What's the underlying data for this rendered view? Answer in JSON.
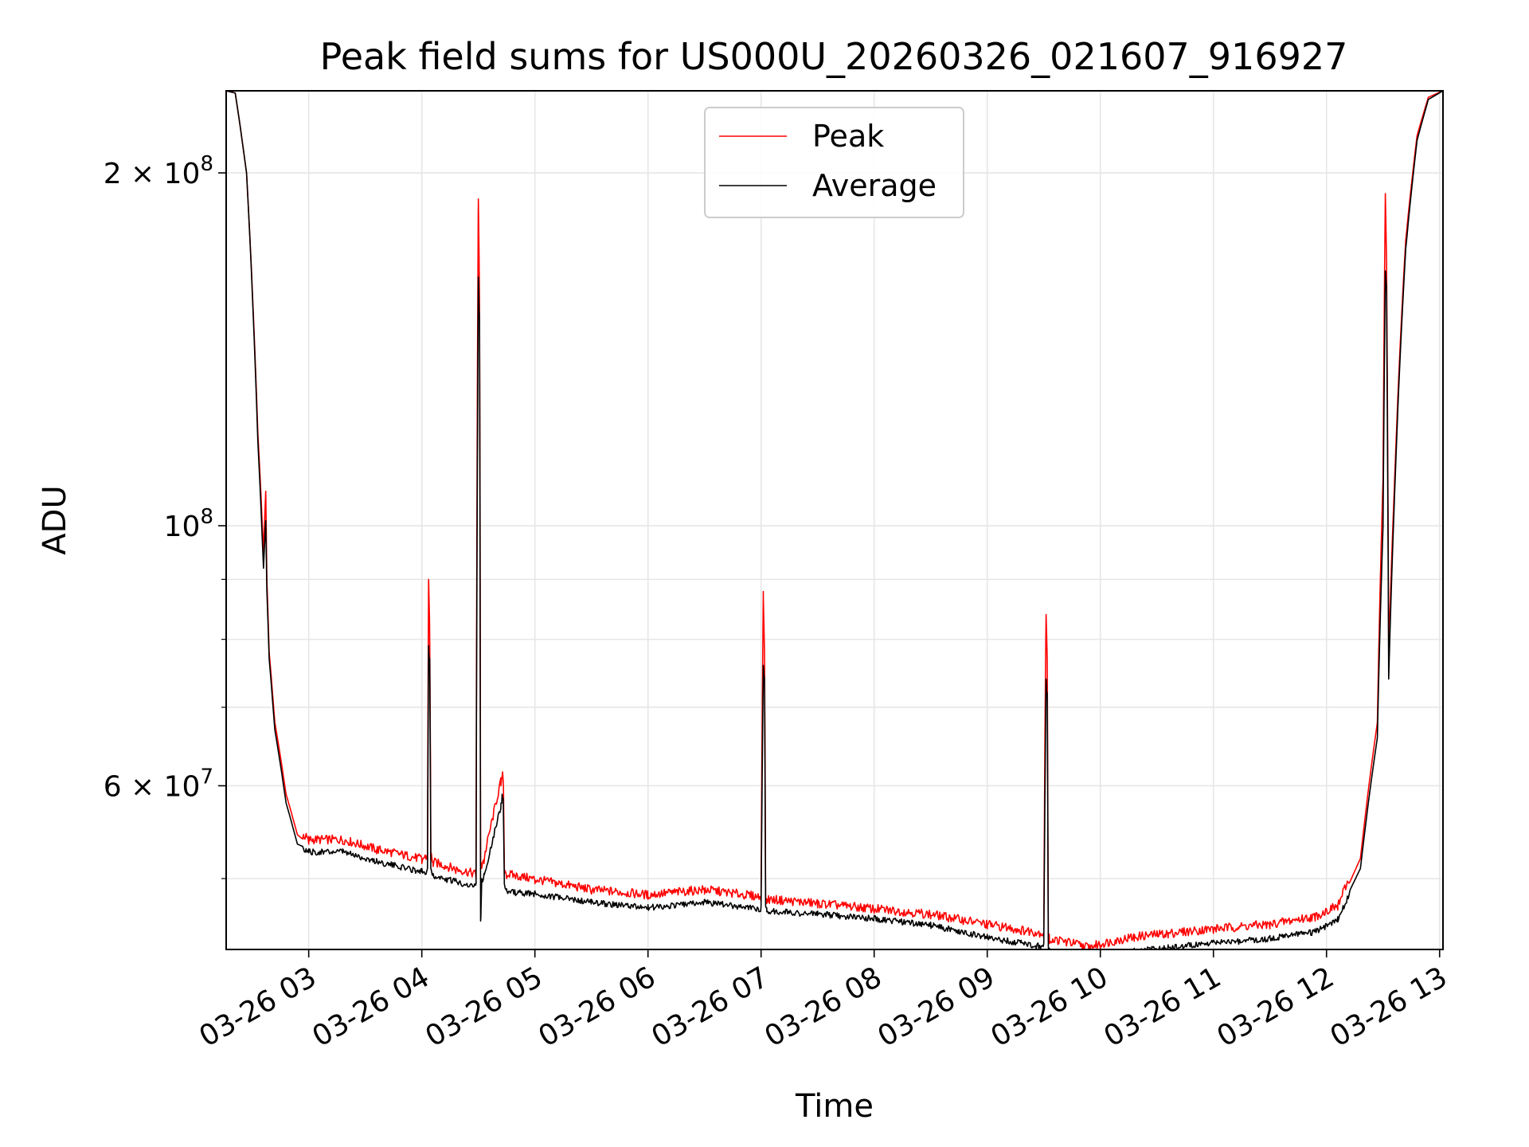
{
  "chart_data": {
    "type": "line",
    "title": "Peak field sums for US000U_20260326_021607_916927",
    "xlabel": "Time",
    "ylabel": "ADU",
    "x_unit": "hours on 2026-03-26",
    "y_scale": "log",
    "xlim": [
      2.27,
      13.03
    ],
    "ylim": [
      43500000,
      235000000
    ],
    "grid": true,
    "legend_location": "upper center",
    "x_ticks": [
      {
        "value": 3,
        "label": "03-26 03"
      },
      {
        "value": 4,
        "label": "03-26 04"
      },
      {
        "value": 5,
        "label": "03-26 05"
      },
      {
        "value": 6,
        "label": "03-26 06"
      },
      {
        "value": 7,
        "label": "03-26 07"
      },
      {
        "value": 8,
        "label": "03-26 08"
      },
      {
        "value": 9,
        "label": "03-26 09"
      },
      {
        "value": 10,
        "label": "03-26 10"
      },
      {
        "value": 11,
        "label": "03-26 11"
      },
      {
        "value": 12,
        "label": "03-26 12"
      },
      {
        "value": 13,
        "label": "03-26 13"
      }
    ],
    "y_ticks": [
      {
        "value": 60000000,
        "base": "6 × 10",
        "exp": "7"
      },
      {
        "value": 100000000,
        "base": "10",
        "exp": "8"
      },
      {
        "value": 200000000,
        "base": "2 × 10",
        "exp": "8"
      }
    ],
    "y_minor_ticks": [
      50000000,
      70000000,
      80000000,
      90000000
    ],
    "series": [
      {
        "name": "Peak",
        "color": "#ff0000",
        "x": [
          2.27,
          2.35,
          2.45,
          2.55,
          2.6,
          2.62,
          2.63,
          2.65,
          2.7,
          2.8,
          2.9,
          3.0,
          3.3,
          3.6,
          4.0,
          4.05,
          4.06,
          4.07,
          4.08,
          4.1,
          4.3,
          4.48,
          4.5,
          4.51,
          4.52,
          4.53,
          4.55,
          4.7,
          4.71,
          4.72,
          4.73,
          4.75,
          5.0,
          5.5,
          6.0,
          6.5,
          7.0,
          7.02,
          7.03,
          7.04,
          7.05,
          7.5,
          8.0,
          8.5,
          9.0,
          9.3,
          9.5,
          9.52,
          9.53,
          9.54,
          9.55,
          9.7,
          9.9,
          10.0,
          10.3,
          10.6,
          11.0,
          11.5,
          11.9,
          12.1,
          12.3,
          12.45,
          12.5,
          12.52,
          12.53,
          12.55,
          12.6,
          12.7,
          12.8,
          12.9,
          13.03
        ],
        "y": [
          235000000,
          234000000,
          200000000,
          120000000,
          95000000,
          107000000,
          90000000,
          78000000,
          68000000,
          59000000,
          54500000,
          53500000,
          53500000,
          52500000,
          51500000,
          51800000,
          90000000,
          80000000,
          52000000,
          51200000,
          50500000,
          50000000,
          190000000,
          155000000,
          51500000,
          51000000,
          51500000,
          60000000,
          61000000,
          60500000,
          50500000,
          50000000,
          49500000,
          48500000,
          48000000,
          48500000,
          47800000,
          87000000,
          78000000,
          48000000,
          47600000,
          47200000,
          46700000,
          46200000,
          45300000,
          44800000,
          44500000,
          84000000,
          77000000,
          44300000,
          44000000,
          43800000,
          43300000,
          43600000,
          44200000,
          44500000,
          44900000,
          45300000,
          46000000,
          47000000,
          52000000,
          68000000,
          110000000,
          192000000,
          170000000,
          78000000,
          108000000,
          175000000,
          215000000,
          232000000,
          235000000
        ]
      },
      {
        "name": "Average",
        "color": "#000000",
        "x": [
          2.27,
          2.35,
          2.45,
          2.55,
          2.6,
          2.62,
          2.63,
          2.65,
          2.7,
          2.8,
          2.9,
          3.0,
          3.3,
          3.6,
          4.0,
          4.05,
          4.06,
          4.07,
          4.08,
          4.1,
          4.3,
          4.48,
          4.5,
          4.51,
          4.52,
          4.53,
          4.55,
          4.7,
          4.71,
          4.72,
          4.73,
          4.75,
          5.0,
          5.5,
          6.0,
          6.5,
          7.0,
          7.02,
          7.03,
          7.04,
          7.05,
          7.5,
          8.0,
          8.5,
          9.0,
          9.3,
          9.5,
          9.52,
          9.53,
          9.54,
          9.55,
          9.7,
          9.9,
          10.0,
          10.3,
          10.6,
          11.0,
          11.5,
          11.9,
          12.1,
          12.3,
          12.45,
          12.5,
          12.52,
          12.53,
          12.55,
          12.6,
          12.7,
          12.8,
          12.9,
          13.03
        ],
        "y": [
          235000000,
          234000000,
          200000000,
          118000000,
          92000000,
          101000000,
          88000000,
          77000000,
          67000000,
          58000000,
          53500000,
          53000000,
          53000000,
          52000000,
          51000000,
          51000000,
          79000000,
          77000000,
          51000000,
          50500000,
          50000000,
          49500000,
          163000000,
          150000000,
          46000000,
          50000000,
          50500000,
          58000000,
          59000000,
          58500000,
          49500000,
          49000000,
          48800000,
          48000000,
          47500000,
          48000000,
          47400000,
          76000000,
          74000000,
          47400000,
          47200000,
          46900000,
          46500000,
          45900000,
          44800000,
          44300000,
          44000000,
          74000000,
          72000000,
          43800000,
          43600000,
          43400000,
          43000000,
          43100000,
          43600000,
          43900000,
          44300000,
          44700000,
          45300000,
          46400000,
          51000000,
          66000000,
          100000000,
          165000000,
          160000000,
          74000000,
          105000000,
          172000000,
          213000000,
          231000000,
          235000000
        ]
      }
    ]
  }
}
